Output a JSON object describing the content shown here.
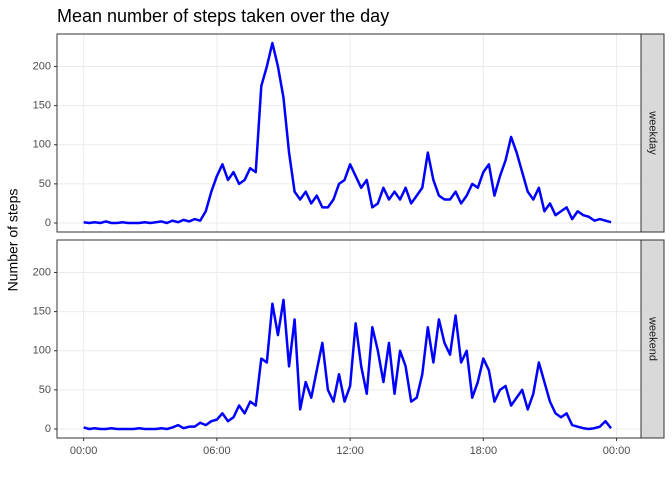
{
  "chart_data": [
    {
      "type": "line",
      "title": "Mean number of steps taken over the day",
      "y_label": "Number of steps",
      "facet": "weekday",
      "x": [
        0,
        0.25,
        0.5,
        0.75,
        1,
        1.25,
        1.5,
        1.75,
        2,
        2.25,
        2.5,
        2.75,
        3,
        3.25,
        3.5,
        3.75,
        4,
        4.25,
        4.5,
        4.75,
        5,
        5.25,
        5.5,
        5.75,
        6,
        6.25,
        6.5,
        6.75,
        7,
        7.25,
        7.5,
        7.75,
        8,
        8.25,
        8.5,
        8.75,
        9,
        9.25,
        9.5,
        9.75,
        10,
        10.25,
        10.5,
        10.75,
        11,
        11.25,
        11.5,
        11.75,
        12,
        12.25,
        12.5,
        12.75,
        13,
        13.25,
        13.5,
        13.75,
        14,
        14.25,
        14.5,
        14.75,
        15,
        15.25,
        15.5,
        15.75,
        16,
        16.25,
        16.5,
        16.75,
        17,
        17.25,
        17.5,
        17.75,
        18,
        18.25,
        18.5,
        18.75,
        19,
        19.25,
        19.5,
        19.75,
        20,
        20.25,
        20.5,
        20.75,
        21,
        21.25,
        21.5,
        21.75,
        22,
        22.25,
        22.5,
        22.75,
        23,
        23.25,
        23.5,
        23.75
      ],
      "series": [
        {
          "name": "weekday",
          "color": "#0000ff",
          "values": [
            1,
            0,
            1,
            0,
            2,
            0,
            0,
            1,
            0,
            0,
            0,
            1,
            0,
            1,
            2,
            0,
            3,
            1,
            4,
            2,
            5,
            3,
            15,
            40,
            60,
            75,
            55,
            65,
            50,
            55,
            70,
            65,
            175,
            200,
            230,
            200,
            160,
            90,
            40,
            30,
            40,
            25,
            35,
            20,
            20,
            30,
            50,
            55,
            75,
            60,
            45,
            55,
            20,
            25,
            45,
            30,
            40,
            30,
            45,
            25,
            35,
            45,
            90,
            55,
            35,
            30,
            30,
            40,
            25,
            35,
            50,
            45,
            65,
            75,
            35,
            60,
            80,
            110,
            90,
            65,
            40,
            30,
            45,
            15,
            25,
            10,
            15,
            20,
            5,
            15,
            10,
            8,
            3,
            5,
            3,
            1
          ]
        }
      ],
      "xlim": [
        -1.2,
        25.1
      ],
      "xticks": [
        0,
        6,
        12,
        18,
        24
      ],
      "ylim": [
        -11.5,
        241.5
      ],
      "yticks": [
        0,
        50,
        100,
        150,
        200
      ],
      "grid": true
    },
    {
      "type": "line",
      "facet": "weekend",
      "x": [
        0,
        0.25,
        0.5,
        0.75,
        1,
        1.25,
        1.5,
        1.75,
        2,
        2.25,
        2.5,
        2.75,
        3,
        3.25,
        3.5,
        3.75,
        4,
        4.25,
        4.5,
        4.75,
        5,
        5.25,
        5.5,
        5.75,
        6,
        6.25,
        6.5,
        6.75,
        7,
        7.25,
        7.5,
        7.75,
        8,
        8.25,
        8.5,
        8.75,
        9,
        9.25,
        9.5,
        9.75,
        10,
        10.25,
        10.5,
        10.75,
        11,
        11.25,
        11.5,
        11.75,
        12,
        12.25,
        12.5,
        12.75,
        13,
        13.25,
        13.5,
        13.75,
        14,
        14.25,
        14.5,
        14.75,
        15,
        15.25,
        15.5,
        15.75,
        16,
        16.25,
        16.5,
        16.75,
        17,
        17.25,
        17.5,
        17.75,
        18,
        18.25,
        18.5,
        18.75,
        19,
        19.25,
        19.5,
        19.75,
        20,
        20.25,
        20.5,
        20.75,
        21,
        21.25,
        21.5,
        21.75,
        22,
        22.25,
        22.5,
        22.75,
        23,
        23.25,
        23.5,
        23.75
      ],
      "series": [
        {
          "name": "weekend",
          "color": "#0000ff",
          "values": [
            2,
            0,
            1,
            0,
            0,
            1,
            0,
            0,
            0,
            0,
            1,
            0,
            0,
            0,
            1,
            0,
            2,
            5,
            1,
            3,
            3,
            8,
            5,
            10,
            12,
            20,
            10,
            15,
            30,
            20,
            35,
            30,
            90,
            85,
            160,
            120,
            165,
            80,
            140,
            25,
            60,
            40,
            75,
            110,
            50,
            35,
            70,
            35,
            55,
            135,
            80,
            45,
            130,
            100,
            60,
            110,
            45,
            100,
            80,
            35,
            40,
            70,
            130,
            85,
            140,
            110,
            95,
            145,
            85,
            100,
            40,
            60,
            90,
            75,
            35,
            50,
            55,
            30,
            40,
            50,
            25,
            45,
            85,
            60,
            35,
            20,
            15,
            20,
            5,
            3,
            1,
            0,
            1,
            3,
            10,
            1
          ]
        }
      ],
      "xlim": [
        -1.2,
        25.1
      ],
      "xticks": [
        {
          "value": 0,
          "label": "00:00"
        },
        {
          "value": 6,
          "label": "06:00"
        },
        {
          "value": 12,
          "label": "12:00"
        },
        {
          "value": 18,
          "label": "18:00"
        },
        {
          "value": 24,
          "label": "00:00"
        }
      ],
      "ylim": [
        -11.5,
        241.5
      ],
      "yticks": [
        0,
        50,
        100,
        150,
        200
      ],
      "grid": true
    }
  ]
}
